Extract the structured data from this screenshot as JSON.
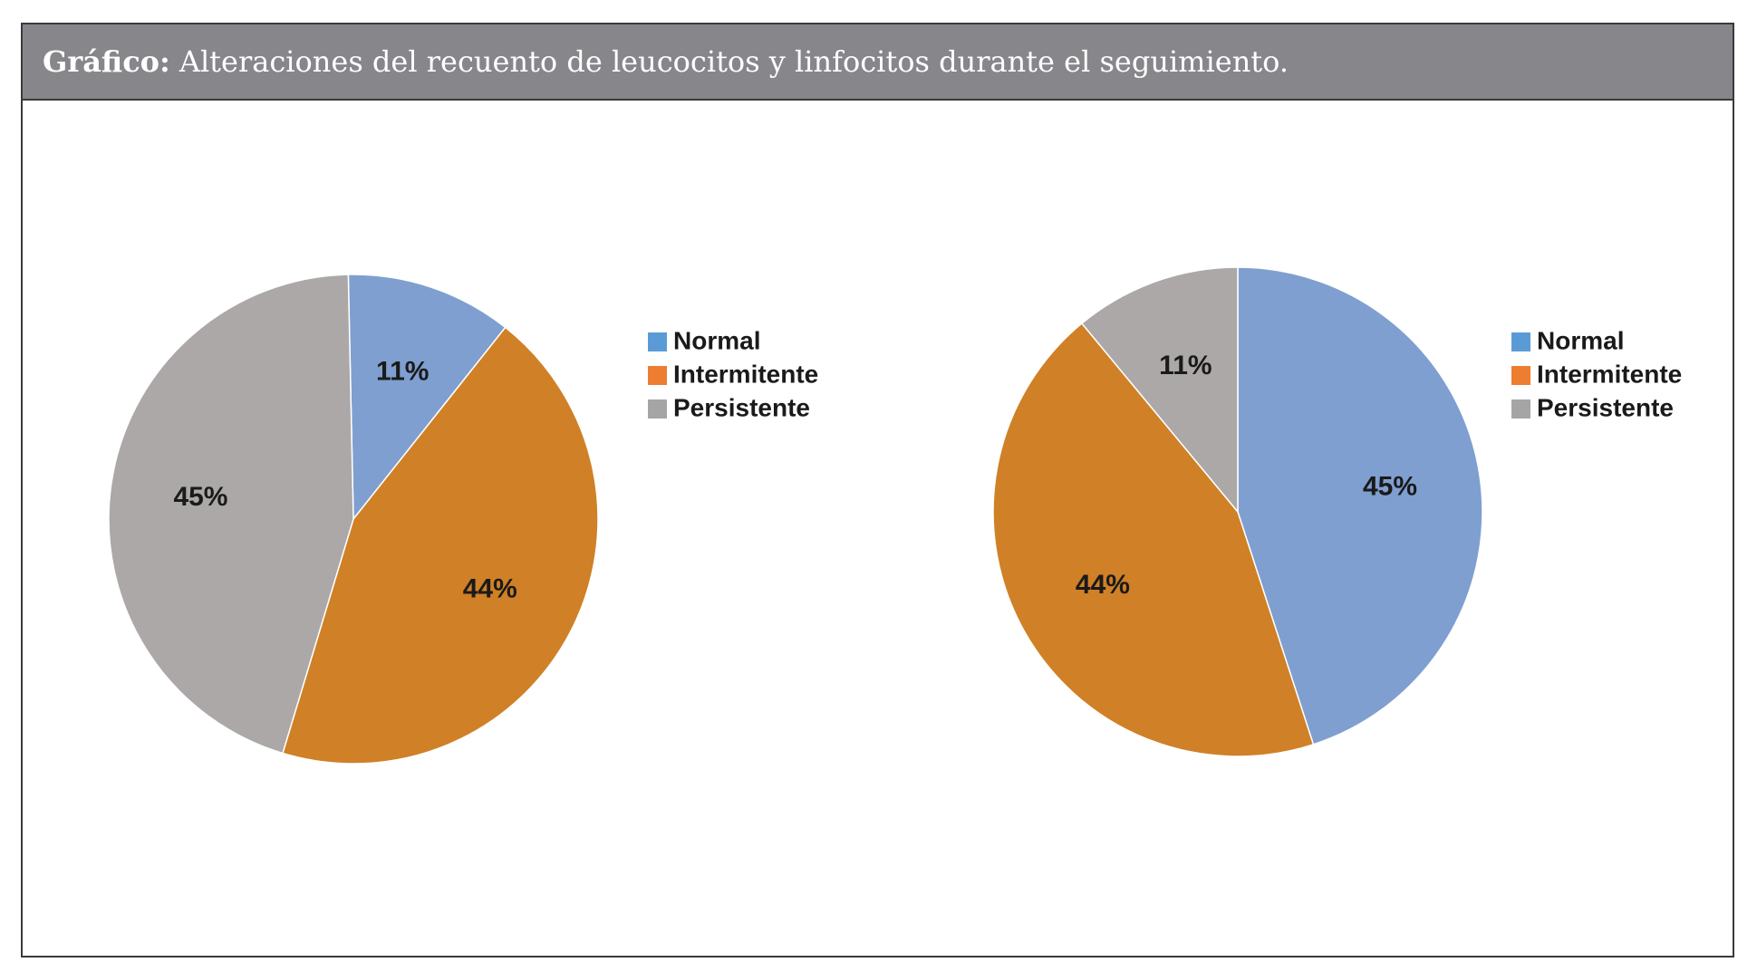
{
  "figure": {
    "title_lead": "Gráfico:",
    "title_text": "Alteraciones del recuento de leucocitos y linfocitos durante el seguimiento."
  },
  "chart_data": [
    {
      "type": "pie",
      "title": "",
      "categories": [
        "Normal",
        "Intermitente",
        "Persistente"
      ],
      "values": [
        11,
        44,
        45
      ],
      "value_labels": [
        "11%",
        "44%",
        "45%"
      ],
      "legend_entries": [
        "Normal",
        "Intermitente",
        "Persistente"
      ],
      "legend_colors": [
        "#5b9bd5",
        "#ed7d31",
        "#a5a5a5"
      ],
      "slice_colors": [
        "#7f9fd0",
        "#d08026",
        "#aba8a7"
      ],
      "legend_position": "right"
    },
    {
      "type": "pie",
      "title": "",
      "categories": [
        "Normal",
        "Intermitente",
        "Persistente"
      ],
      "values": [
        45,
        44,
        11
      ],
      "value_labels": [
        "45%",
        "44%",
        "11%"
      ],
      "legend_entries": [
        "Normal",
        "Intermitente",
        "Persistente"
      ],
      "legend_colors": [
        "#5b9bd5",
        "#ed7d31",
        "#a5a5a5"
      ],
      "slice_colors": [
        "#7f9fd0",
        "#d08026",
        "#aba8a7"
      ],
      "legend_position": "right"
    }
  ]
}
